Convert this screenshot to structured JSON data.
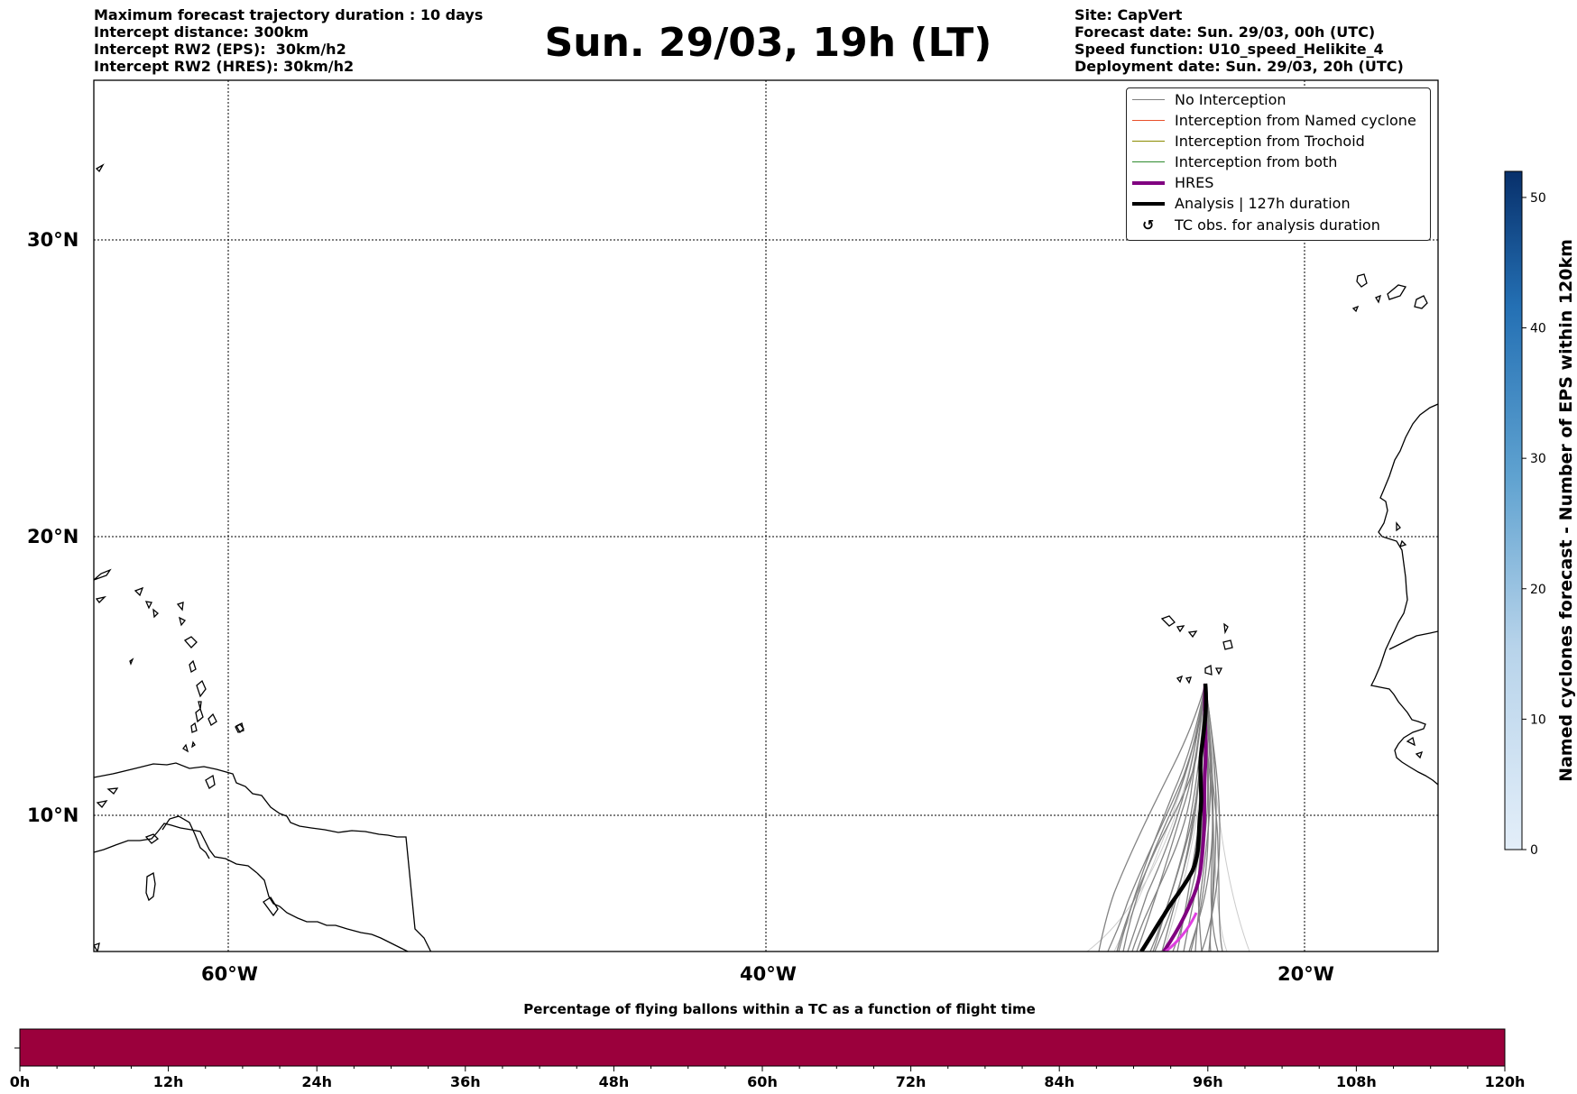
{
  "header_left": [
    "Maximum forecast trajectory duration : 10 days",
    "Intercept distance: 300km",
    "Intercept RW2 (EPS):  30km/h2",
    "Intercept RW2 (HRES): 30km/h2"
  ],
  "title": "Sun. 29/03, 19h (LT)",
  "header_right": [
    "Site: CapVert",
    "Forecast date: Sun. 29/03, 00h (UTC)",
    "Speed function: U10_speed_Helikite_4",
    "Deployment date: Sun. 29/03, 20h (UTC)"
  ],
  "legend": [
    {
      "label": "No Interception",
      "color": "#808080"
    },
    {
      "label": "Interception from Named cyclone",
      "color": "#e8502a"
    },
    {
      "label": "Interception from Trochoid",
      "color": "#8a8a00"
    },
    {
      "label": "Interception from both",
      "color": "#2e8b2e"
    },
    {
      "label": "HRES",
      "color": "#800080"
    },
    {
      "label": "Analysis | 127h duration",
      "color": "#000000"
    },
    {
      "label": "TC obs. for analysis duration",
      "color": "#000000",
      "icon": "cyclone-symbol"
    }
  ],
  "map": {
    "lat_labels": [
      "30°N",
      "20°N",
      "10°N"
    ],
    "lon_labels": [
      "60°W",
      "40°W",
      "20°W"
    ]
  },
  "colorbar": {
    "label": "Named cyclones forecast - Number of EPS within 120km",
    "ticks": [
      "0",
      "10",
      "20",
      "30",
      "40",
      "50"
    ],
    "range": [
      0,
      52
    ],
    "color_low": "#deebf7",
    "color_high": "#08306b"
  },
  "bottom_bar": {
    "title": "Percentage of flying ballons within a TC as a function of flight time",
    "ticks": [
      "0h",
      "12h",
      "24h",
      "36h",
      "48h",
      "60h",
      "72h",
      "84h",
      "96h",
      "108h",
      "120h"
    ],
    "fill_color": "#9b003c"
  }
}
